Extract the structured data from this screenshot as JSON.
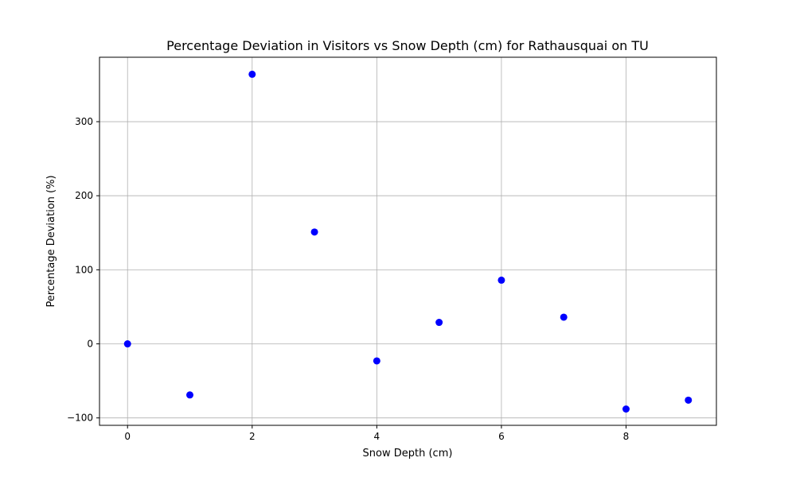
{
  "chart_data": {
    "type": "scatter",
    "title": "Percentage Deviation in Visitors vs Snow Depth (cm) for Rathausquai on TU",
    "xlabel": "Snow Depth (cm)",
    "ylabel": "Percentage Deviation (%)",
    "xlim": [
      -0.45,
      9.45
    ],
    "ylim": [
      -110,
      387
    ],
    "xticks": [
      0,
      2,
      4,
      6,
      8
    ],
    "yticks": [
      -100,
      0,
      100,
      200,
      300
    ],
    "xtick_labels": [
      "0",
      "2",
      "4",
      "6",
      "8"
    ],
    "ytick_labels": [
      "−100",
      "0",
      "100",
      "200",
      "300"
    ],
    "grid": true,
    "marker_color": "#0000ff",
    "series": [
      {
        "points": [
          {
            "x": 0,
            "y": 0
          },
          {
            "x": 1,
            "y": -69
          },
          {
            "x": 2,
            "y": 364
          },
          {
            "x": 3,
            "y": 151
          },
          {
            "x": 4,
            "y": -23
          },
          {
            "x": 5,
            "y": 29
          },
          {
            "x": 6,
            "y": 86
          },
          {
            "x": 7,
            "y": 36
          },
          {
            "x": 8,
            "y": -88
          },
          {
            "x": 9,
            "y": -76
          }
        ]
      }
    ]
  }
}
